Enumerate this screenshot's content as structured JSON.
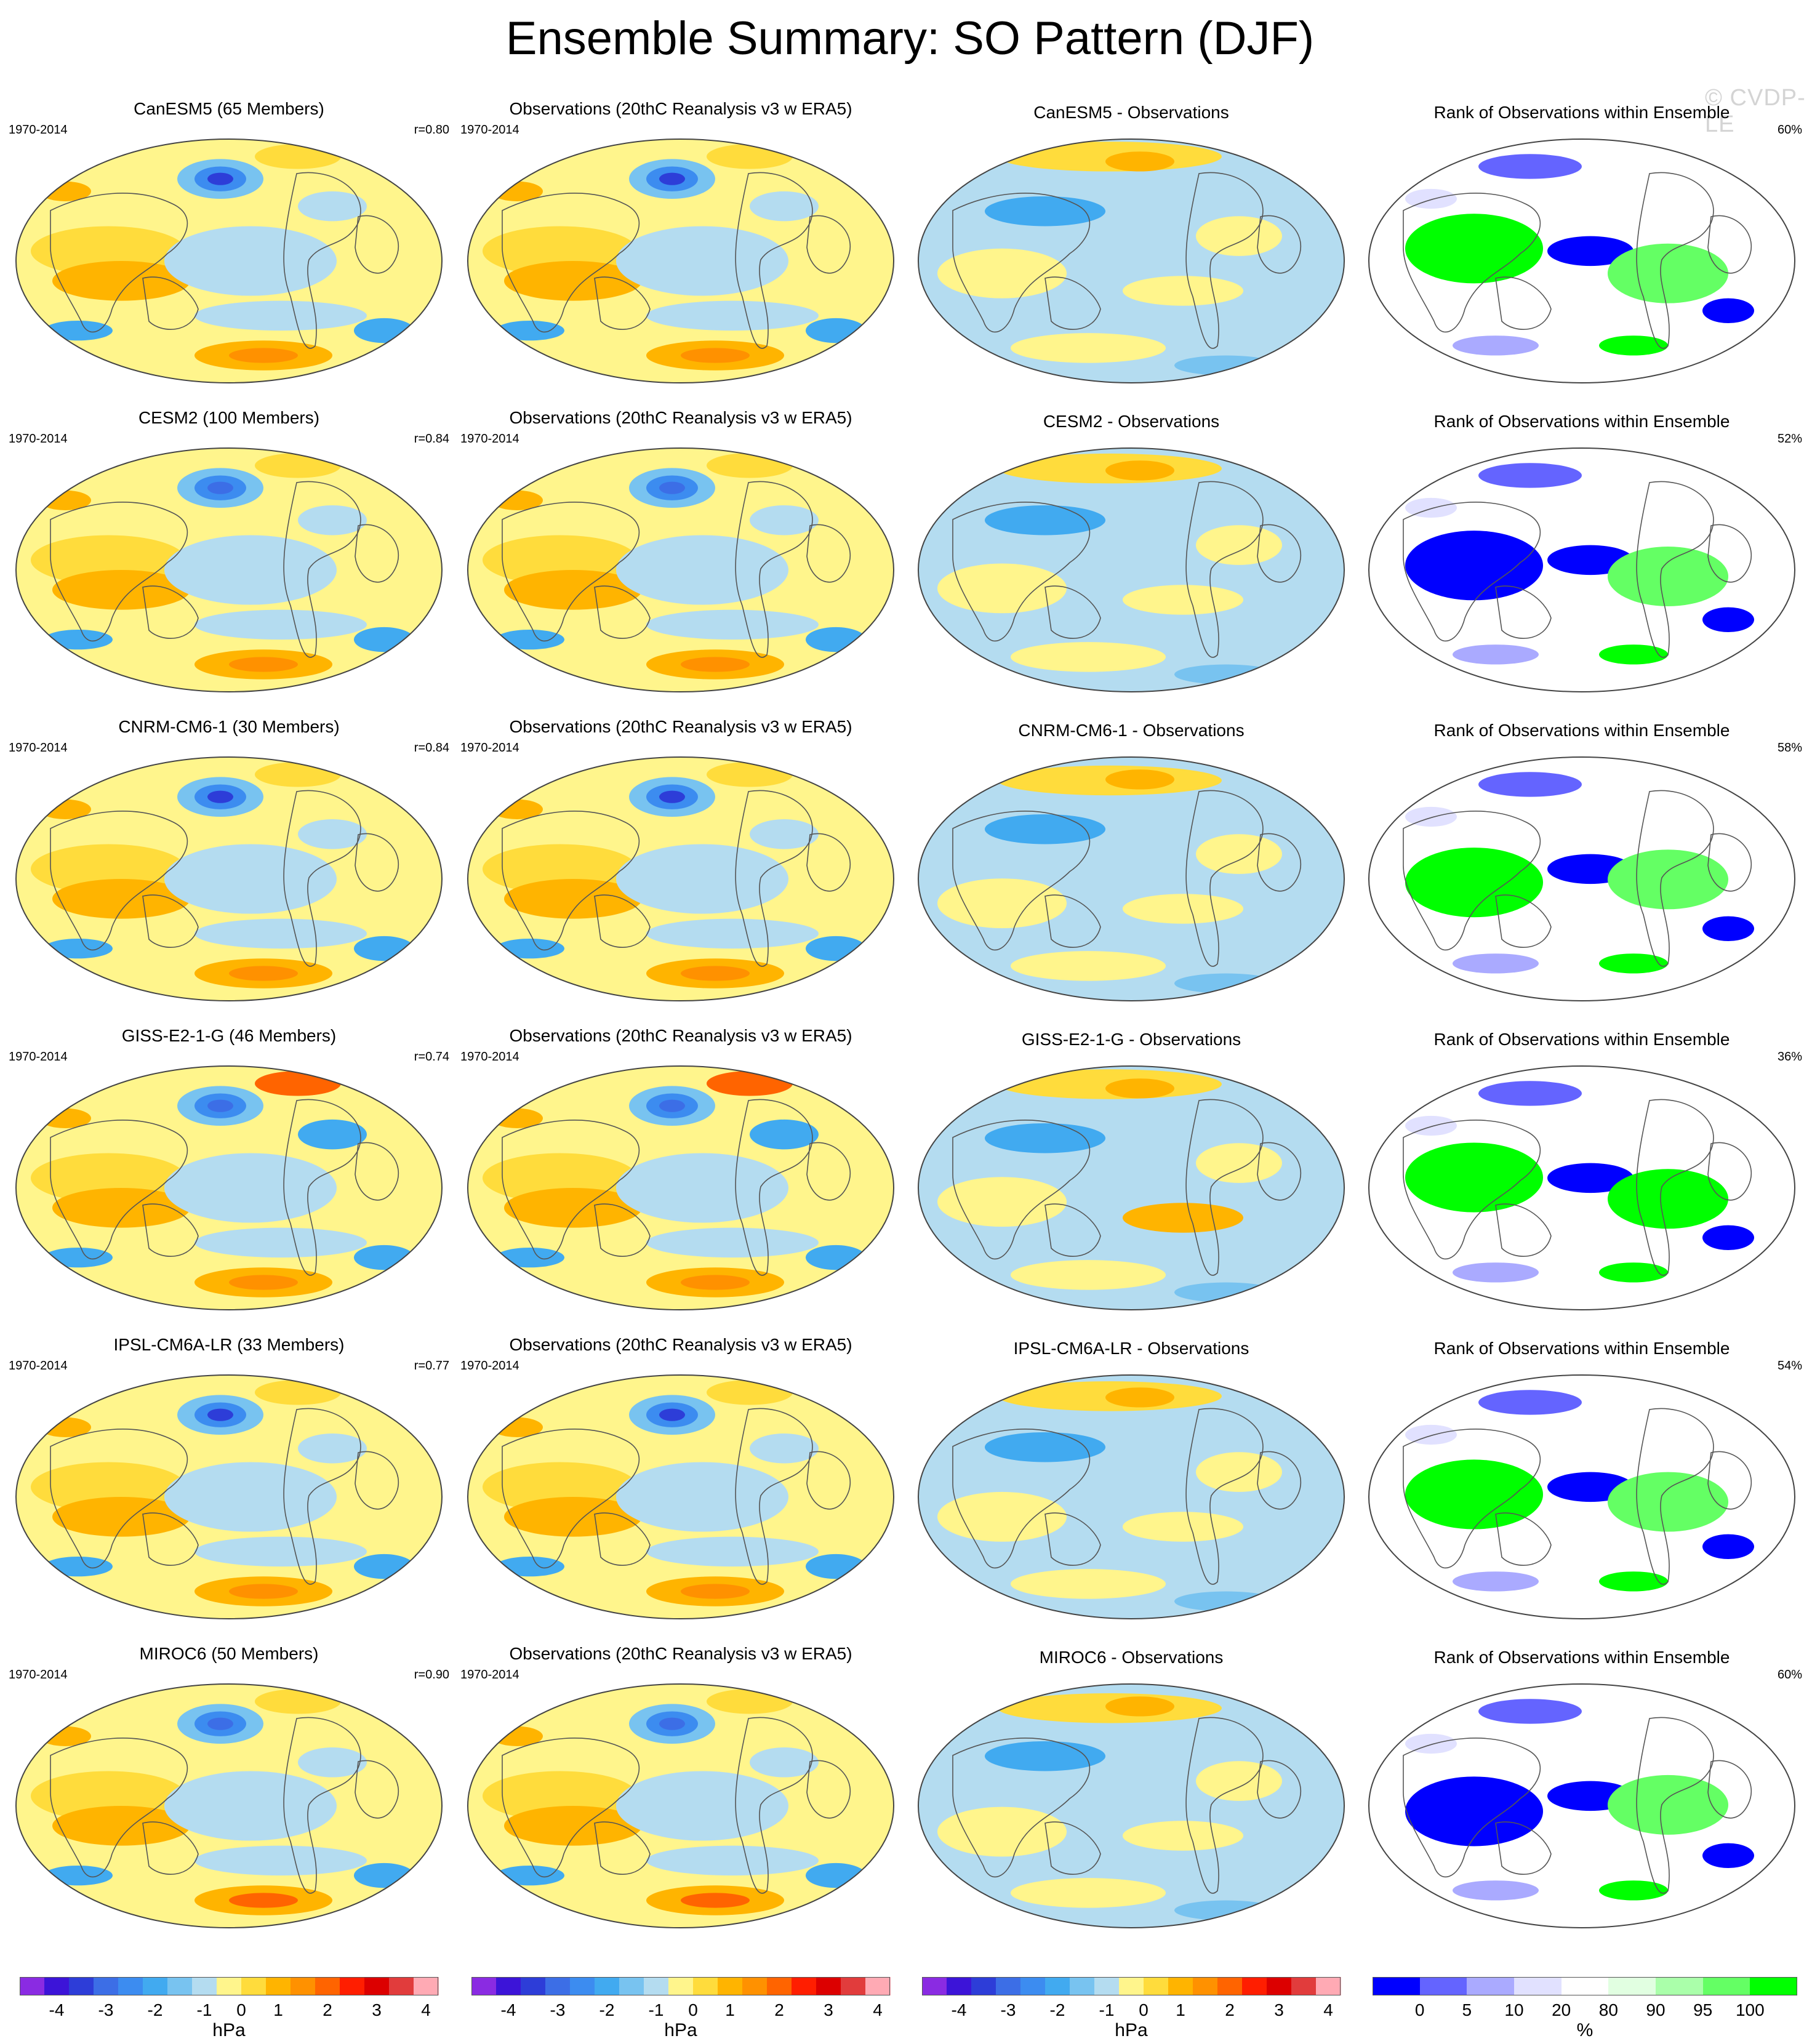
{
  "title": "Ensemble Summary: SO Pattern (DJF)",
  "watermark": "© CVDP-LE",
  "period": "1970-2014",
  "colors": {
    "hpa_scale": [
      "#8a2be2",
      "#3c14d8",
      "#2d3dd8",
      "#3c6ee6",
      "#3c8cf0",
      "#41aaf0",
      "#78c3f0",
      "#b4dcf0",
      "#fff58c",
      "#ffdc3c",
      "#ffb400",
      "#ff9100",
      "#ff6400",
      "#ff1e00",
      "#dc0000",
      "#e13c3c",
      "#ffaab4"
    ],
    "rank_scale": [
      "#0000ff",
      "#6464ff",
      "#aaaaff",
      "#e1e1ff",
      "#ffffff",
      "#e1ffe1",
      "#aaffaa",
      "#64ff64",
      "#00ff00"
    ]
  },
  "rows": [
    {
      "model": "CanESM5 (65 Members)",
      "r": "r=0.80",
      "obs": "Observations (20thC Reanalysis v3 w ERA5)",
      "diff": "CanESM5 - Observations",
      "rank": "Rank of Observations within Ensemble",
      "pct": "60%"
    },
    {
      "model": "CESM2 (100 Members)",
      "r": "r=0.84",
      "obs": "Observations (20thC Reanalysis v3 w ERA5)",
      "diff": "CESM2 - Observations",
      "rank": "Rank of Observations within Ensemble",
      "pct": "52%"
    },
    {
      "model": "CNRM-CM6-1 (30 Members)",
      "r": "r=0.84",
      "obs": "Observations (20thC Reanalysis v3 w ERA5)",
      "diff": "CNRM-CM6-1 - Observations",
      "rank": "Rank of Observations within Ensemble",
      "pct": "58%"
    },
    {
      "model": "GISS-E2-1-G (46 Members)",
      "r": "r=0.74",
      "obs": "Observations (20thC Reanalysis v3 w ERA5)",
      "diff": "GISS-E2-1-G - Observations",
      "rank": "Rank of Observations within Ensemble",
      "pct": "36%"
    },
    {
      "model": "IPSL-CM6A-LR (33 Members)",
      "r": "r=0.77",
      "obs": "Observations (20thC Reanalysis v3 w ERA5)",
      "diff": "IPSL-CM6A-LR - Observations",
      "rank": "Rank of Observations within Ensemble",
      "pct": "54%"
    },
    {
      "model": "MIROC6 (50 Members)",
      "r": "r=0.90",
      "obs": "Observations (20thC Reanalysis v3 w ERA5)",
      "diff": "MIROC6 - Observations",
      "rank": "Rank of Observations within Ensemble",
      "pct": "60%"
    }
  ],
  "colorbars": [
    {
      "kind": "hpa",
      "ticks": [
        "-4",
        "-3",
        "-2",
        "-1",
        "0",
        "1",
        "2",
        "3",
        "4"
      ],
      "unit": "hPa"
    },
    {
      "kind": "hpa",
      "ticks": [
        "-4",
        "-3",
        "-2",
        "-1",
        "0",
        "1",
        "2",
        "3",
        "4"
      ],
      "unit": "hPa"
    },
    {
      "kind": "hpa",
      "ticks": [
        "-4",
        "-3",
        "-2",
        "-1",
        "0",
        "1",
        "2",
        "3",
        "4"
      ],
      "unit": "hPa"
    },
    {
      "kind": "rank",
      "ticks": [
        "0",
        "5",
        "10",
        "20",
        "80",
        "90",
        "95",
        "100"
      ],
      "unit": "%"
    }
  ]
}
